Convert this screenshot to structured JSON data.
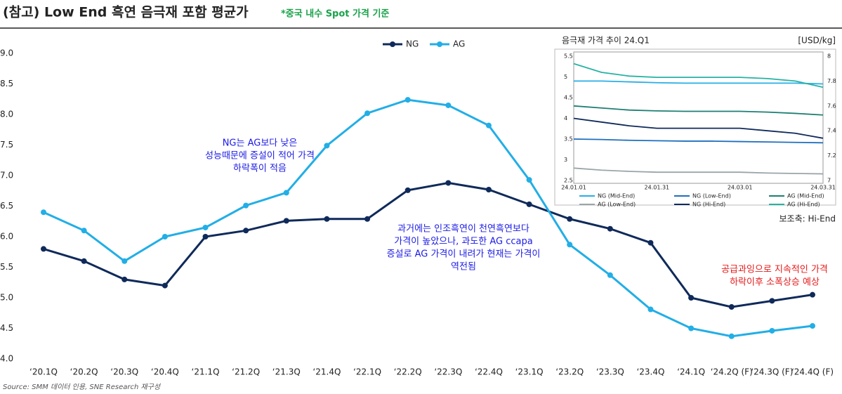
{
  "chart_data": [
    {
      "type": "line",
      "title": "(참고) Low End 흑연 음극재 포함 평균가",
      "note": "*중국 내수 Spot 가격 기준",
      "source": "Source: SMM 데이터 인용, SNE Research 재구성",
      "categories": [
        "‘20.1Q",
        "‘20.2Q",
        "‘20.3Q",
        "‘20.4Q",
        "‘21.1Q",
        "‘21.2Q",
        "‘21.3Q",
        "‘21.4Q",
        "‘22.1Q",
        "‘22.2Q",
        "‘22.3Q",
        "‘22.4Q",
        "‘23.1Q",
        "‘23.2Q",
        "‘23.3Q",
        "‘23.4Q",
        "‘24.1Q",
        "‘24.2Q (F)",
        "‘24.3Q (F)",
        "‘24.4Q (F)"
      ],
      "series": [
        {
          "name": "NG",
          "color": "#0f2a5a",
          "values": [
            5.8,
            5.6,
            5.3,
            5.2,
            6.0,
            6.1,
            6.26,
            6.29,
            6.29,
            6.76,
            6.88,
            6.77,
            6.53,
            6.29,
            6.13,
            5.9,
            5.0,
            4.85,
            4.95,
            5.05
          ]
        },
        {
          "name": "AG",
          "color": "#22aee6",
          "values": [
            6.4,
            6.1,
            5.6,
            6.0,
            6.15,
            6.51,
            6.72,
            7.49,
            8.02,
            8.24,
            8.15,
            7.82,
            6.93,
            5.87,
            5.37,
            4.81,
            4.5,
            4.37,
            4.46,
            4.54
          ]
        }
      ],
      "ylim": [
        4,
        9
      ],
      "yticks": [
        {
          "value": 4,
          "label": "4.0"
        },
        4.5,
        {
          "value": 5,
          "label": "5.0"
        },
        5.5,
        {
          "value": 6,
          "label": "6.0"
        },
        6.5,
        {
          "value": 7,
          "label": "7.0"
        },
        7.5,
        {
          "value": 8,
          "label": "8.0"
        },
        8.5,
        {
          "value": 9,
          "label": "9.0"
        }
      ],
      "grid": false,
      "annotations": [
        {
          "color": "#1a1ae6",
          "lines": [
            "NG는 AG보다 낮은",
            "성능때문에 증설이 적어 가격",
            "하락폭이 적음"
          ]
        },
        {
          "color": "#1a1ae6",
          "lines": [
            "과거에는 인조흑연이 천연흑연보다",
            "가격이 높았으나, 과도한 AG ccapa",
            "증설로 AG 가격이 내려가 현재는 가격이",
            "역전됨"
          ]
        },
        {
          "color": "#e61a1a",
          "lines": [
            "공급과잉으로 지속적인 가격",
            "하락이후 소폭상승 예상"
          ]
        }
      ]
    },
    {
      "type": "line",
      "title": "음극재 가격 추이 24.Q1",
      "unit": "[USD/kg]",
      "y2_label": "보조축: Hi-End",
      "categories": [
        "24.01.01",
        null,
        null,
        "24.01.31",
        null,
        null,
        "24.03.01",
        null,
        null,
        "24.03.31"
      ],
      "series": [
        {
          "name": "NG (Mid-End)",
          "color": "#29aee6",
          "values": [
            4.9,
            4.9,
            4.88,
            4.86,
            4.85,
            4.85,
            4.85,
            4.85,
            4.85,
            4.83
          ]
        },
        {
          "name": "NG (Low-End)",
          "color": "#1f6fbf",
          "values": [
            3.5,
            3.49,
            3.47,
            3.46,
            3.45,
            3.45,
            3.44,
            3.43,
            3.42,
            3.41
          ]
        },
        {
          "name": "AG (Mid-End)",
          "color": "#1d7f73",
          "values": [
            4.3,
            4.25,
            4.2,
            4.18,
            4.17,
            4.17,
            4.17,
            4.15,
            4.12,
            4.08
          ]
        },
        {
          "name": "AG (Low-End)",
          "color": "#9aa5aa",
          "values": [
            2.8,
            2.75,
            2.72,
            2.7,
            2.7,
            2.7,
            2.7,
            2.68,
            2.67,
            2.66
          ]
        },
        {
          "name": "NG (Hi-End)",
          "color": "#0f2a5a",
          "axis": "y2",
          "values": [
            7.5,
            7.47,
            7.44,
            7.42,
            7.42,
            7.42,
            7.42,
            7.4,
            7.38,
            7.34
          ]
        },
        {
          "name": "AG (Hi-End)",
          "color": "#25b3a3",
          "axis": "y2",
          "values": [
            7.94,
            7.87,
            7.84,
            7.83,
            7.83,
            7.83,
            7.83,
            7.82,
            7.8,
            7.75
          ]
        }
      ],
      "ylim": [
        2.5,
        5.5
      ],
      "yticks": [
        2.5,
        3,
        3.5,
        4,
        4.5,
        5,
        5.5
      ],
      "y2lim": [
        7,
        8
      ],
      "y2ticks": [
        7,
        7.2,
        7.4,
        7.6,
        7.8,
        8
      ]
    }
  ]
}
